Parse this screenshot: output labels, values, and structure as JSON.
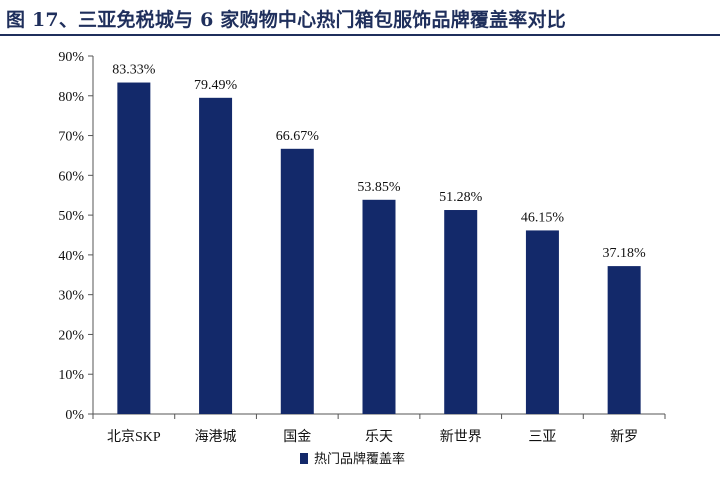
{
  "figure": {
    "title": "图 17、三亚免税城与 6 家购物中心热门箱包服饰品牌覆盖率对比"
  },
  "colors": {
    "bar": "#13296a",
    "title": "#1f2f5c",
    "axis": "#555555"
  },
  "chart_data": {
    "type": "bar",
    "title": "图 17、三亚免税城与 6 家购物中心热门箱包服饰品牌覆盖率对比",
    "xlabel": "",
    "ylabel": "",
    "categories": [
      "北京SKP",
      "海港城",
      "国金",
      "乐天",
      "新世界",
      "三亚",
      "新罗"
    ],
    "series": [
      {
        "name": "热门品牌覆盖率",
        "values": [
          83.33,
          79.49,
          66.67,
          53.85,
          51.28,
          46.15,
          37.18
        ],
        "data_labels": [
          "83.33%",
          "79.49%",
          "66.67%",
          "53.85%",
          "51.28%",
          "46.15%",
          "37.18%"
        ]
      }
    ],
    "ylim": [
      0,
      90
    ],
    "yticks": [
      0,
      10,
      20,
      30,
      40,
      50,
      60,
      70,
      80,
      90
    ],
    "ytick_labels": [
      "0%",
      "10%",
      "20%",
      "30%",
      "40%",
      "50%",
      "60%",
      "70%",
      "80%",
      "90%"
    ],
    "grid": false,
    "legend_position": "bottom"
  }
}
